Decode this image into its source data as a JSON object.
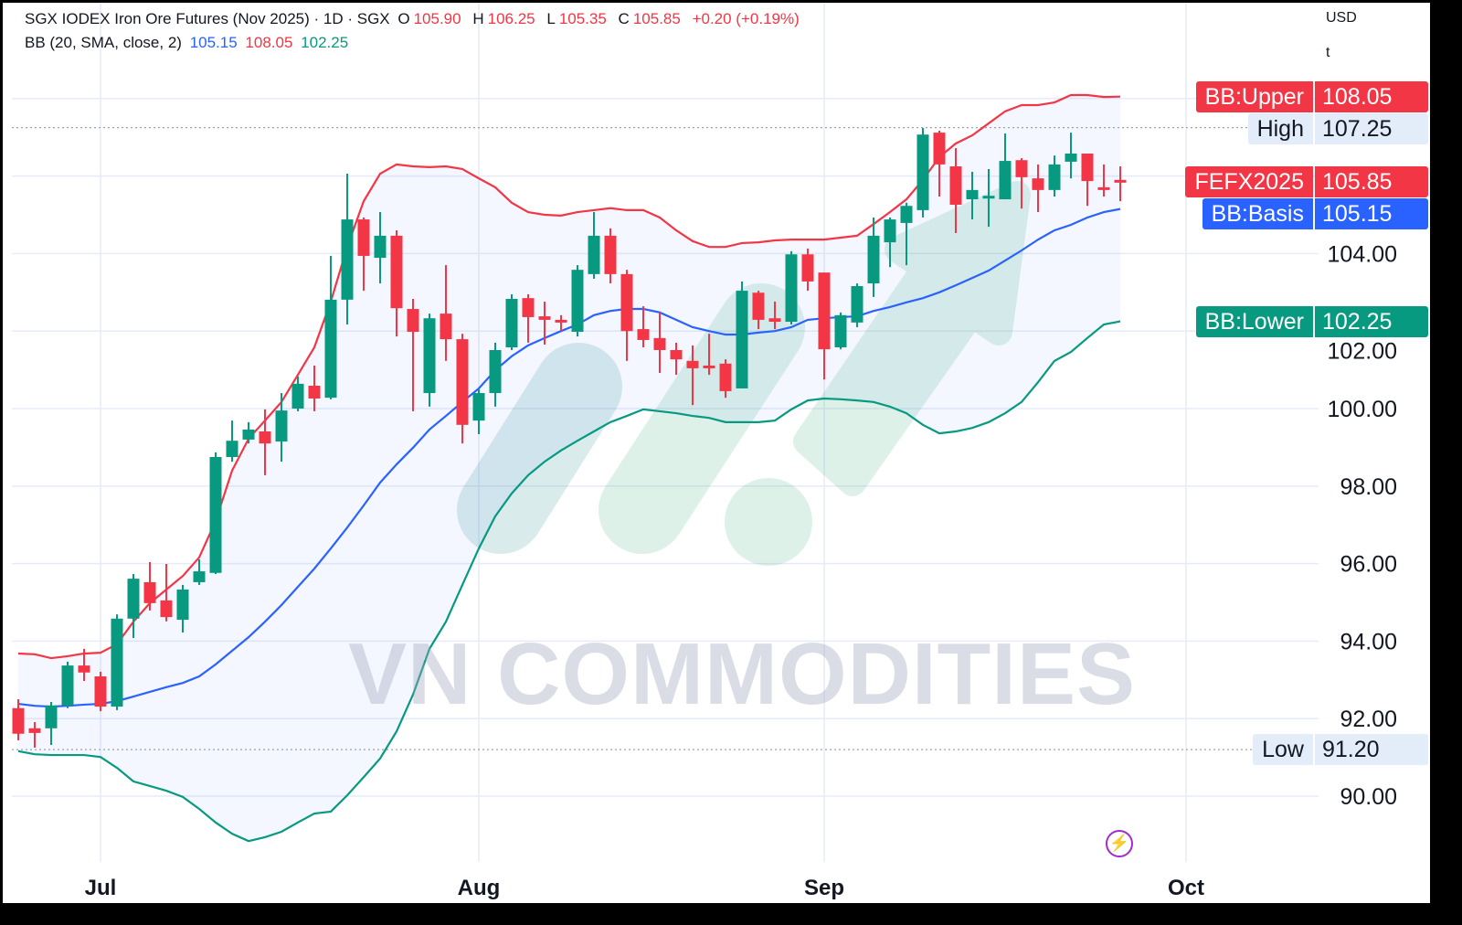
{
  "header": {
    "symbol_title": "SGX IODEX Iron Ore Futures (Nov 2025) · 1D · SGX",
    "ohlc": {
      "o_label": "O",
      "o": "105.90",
      "h_label": "H",
      "h": "106.25",
      "l_label": "L",
      "l": "105.35",
      "c_label": "C",
      "c": "105.85",
      "change": "+0.20 (+0.19%)"
    },
    "indicator": "BB (20, SMA, close, 2)",
    "bb_basis": "105.15",
    "bb_upper": "108.05",
    "bb_lower": "102.25"
  },
  "axis": {
    "currency": "USD",
    "unit": "t"
  },
  "price_tags": {
    "upper": {
      "name": "BB:Upper",
      "value": "108.05",
      "color": "#f23645"
    },
    "high": {
      "name": "High",
      "value": "107.25",
      "color": "#e3ecf9"
    },
    "last": {
      "name": "FEFX2025",
      "value": "105.85",
      "color": "#f23645"
    },
    "basis": {
      "name": "BB:Basis",
      "value": "105.15",
      "color": "#2962ff"
    },
    "lower": {
      "name": "BB:Lower",
      "value": "102.25",
      "color": "#089981"
    },
    "low": {
      "name": "Low",
      "value": "91.20",
      "color": "#e3ecf9"
    }
  },
  "watermark": "VN COMMODITIES",
  "icons": {
    "bottom_right": "lightning-bolt-icon"
  },
  "chart_data": {
    "type": "candlestick",
    "title": "SGX IODEX Iron Ore Futures (Nov 2025) · 1D · SGX",
    "y_tick_labels": [
      "90.00",
      "92.00",
      "94.00",
      "96.00",
      "98.00",
      "100.00",
      "102.00",
      "104.00"
    ],
    "y_grid": [
      90,
      92,
      94,
      96,
      98,
      100,
      102,
      104,
      106,
      108
    ],
    "ylim": [
      88.4,
      110.5
    ],
    "x_ticks": [
      {
        "label": "Jul",
        "date": "2025-07-01"
      },
      {
        "label": "Aug",
        "date": "2025-08-01"
      },
      {
        "label": "Sep",
        "date": "2025-09-01"
      },
      {
        "label": "Oct",
        "date": "2025-10-01"
      }
    ],
    "grid": true,
    "colors": {
      "up": "#089981",
      "down": "#f23645",
      "bb_upper": "#f23645",
      "bb_basis": "#2962ff",
      "bb_lower": "#089981",
      "band_fill": "#2962ff"
    },
    "high_line": 107.25,
    "low_line": 91.2,
    "candles_fields": [
      "date",
      "open",
      "high",
      "low",
      "close"
    ],
    "candles": [
      [
        "2025-06-24",
        92.27,
        92.5,
        91.44,
        91.61
      ],
      [
        "2025-06-25",
        91.75,
        91.91,
        91.25,
        91.63
      ],
      [
        "2025-06-26",
        91.75,
        92.43,
        91.32,
        92.34
      ],
      [
        "2025-06-27",
        92.34,
        93.47,
        92.27,
        93.37
      ],
      [
        "2025-06-30",
        93.37,
        93.8,
        92.97,
        93.19
      ],
      [
        "2025-07-01",
        93.09,
        93.21,
        92.19,
        92.31
      ],
      [
        "2025-07-02",
        92.31,
        94.69,
        92.22,
        94.58
      ],
      [
        "2025-07-03",
        94.58,
        95.73,
        94.08,
        95.61
      ],
      [
        "2025-07-04",
        95.52,
        96.04,
        94.79,
        94.98
      ],
      [
        "2025-07-07",
        95.05,
        95.99,
        94.51,
        94.62
      ],
      [
        "2025-07-08",
        94.55,
        95.45,
        94.22,
        95.33
      ],
      [
        "2025-07-09",
        95.52,
        96.11,
        95.45,
        95.8
      ],
      [
        "2025-07-10",
        95.76,
        98.87,
        95.73,
        98.75
      ],
      [
        "2025-07-11",
        98.75,
        99.69,
        98.63,
        99.17
      ],
      [
        "2025-07-14",
        99.2,
        99.65,
        99.1,
        99.46
      ],
      [
        "2025-07-15",
        99.41,
        99.98,
        98.28,
        99.1
      ],
      [
        "2025-07-16",
        99.15,
        100.4,
        98.63,
        99.95
      ],
      [
        "2025-07-17",
        100.0,
        100.83,
        99.93,
        100.64
      ],
      [
        "2025-07-18",
        100.59,
        101.11,
        99.93,
        100.26
      ],
      [
        "2025-07-21",
        100.28,
        103.94,
        100.24,
        102.81
      ],
      [
        "2025-07-22",
        102.81,
        106.06,
        102.17,
        104.88
      ],
      [
        "2025-07-23",
        104.88,
        104.93,
        103.04,
        103.94
      ],
      [
        "2025-07-24",
        103.89,
        105.07,
        103.23,
        104.46
      ],
      [
        "2025-07-25",
        104.46,
        104.6,
        101.86,
        102.59
      ],
      [
        "2025-07-28",
        102.57,
        102.83,
        99.93,
        101.98
      ],
      [
        "2025-07-29",
        100.4,
        102.45,
        100.05,
        102.33
      ],
      [
        "2025-07-30",
        102.45,
        103.7,
        101.23,
        101.79
      ],
      [
        "2025-07-31",
        101.79,
        101.93,
        99.1,
        99.58
      ],
      [
        "2025-08-01",
        99.69,
        100.52,
        99.34,
        100.4
      ],
      [
        "2025-08-04",
        100.4,
        101.7,
        100.05,
        101.51
      ],
      [
        "2025-08-05",
        101.58,
        102.95,
        101.51,
        102.83
      ],
      [
        "2025-08-06",
        102.85,
        102.95,
        101.7,
        102.36
      ],
      [
        "2025-08-07",
        102.38,
        102.76,
        101.65,
        102.29
      ],
      [
        "2025-08-08",
        102.29,
        102.41,
        102.0,
        102.22
      ],
      [
        "2025-08-11",
        101.98,
        103.7,
        101.86,
        103.58
      ],
      [
        "2025-08-12",
        103.47,
        105.07,
        103.35,
        104.46
      ],
      [
        "2025-08-13",
        104.46,
        104.65,
        103.23,
        103.47
      ],
      [
        "2025-08-14",
        103.47,
        103.58,
        101.23,
        102.0
      ],
      [
        "2025-08-15",
        102.05,
        102.64,
        101.58,
        101.77
      ],
      [
        "2025-08-18",
        101.82,
        102.48,
        100.92,
        101.51
      ],
      [
        "2025-08-19",
        101.51,
        101.7,
        100.87,
        101.27
      ],
      [
        "2025-08-20",
        101.23,
        101.63,
        100.09,
        101.04
      ],
      [
        "2025-08-21",
        101.11,
        101.93,
        100.87,
        101.06
      ],
      [
        "2025-08-22",
        101.16,
        101.27,
        100.28,
        100.45
      ],
      [
        "2025-08-25",
        100.52,
        103.28,
        100.52,
        103.04
      ],
      [
        "2025-08-26",
        102.99,
        103.04,
        102.05,
        102.29
      ],
      [
        "2025-08-27",
        102.33,
        102.76,
        102.05,
        102.24
      ],
      [
        "2025-08-28",
        102.24,
        104.06,
        102.17,
        103.98
      ],
      [
        "2025-08-29",
        103.98,
        104.13,
        103.04,
        103.28
      ],
      [
        "2025-09-01",
        103.51,
        103.51,
        100.75,
        101.53
      ],
      [
        "2025-09-02",
        101.58,
        102.48,
        101.53,
        102.41
      ],
      [
        "2025-09-03",
        102.22,
        103.23,
        102.1,
        103.16
      ],
      [
        "2025-09-04",
        103.23,
        104.93,
        102.88,
        104.46
      ],
      [
        "2025-09-05",
        104.29,
        104.93,
        103.65,
        104.88
      ],
      [
        "2025-09-08",
        104.79,
        105.31,
        103.7,
        105.23
      ],
      [
        "2025-09-09",
        105.12,
        107.24,
        104.93,
        107.07
      ],
      [
        "2025-09-10",
        107.12,
        107.17,
        105.47,
        106.3
      ],
      [
        "2025-09-11",
        106.25,
        106.72,
        104.53,
        105.26
      ],
      [
        "2025-09-12",
        105.4,
        106.11,
        104.88,
        105.64
      ],
      [
        "2025-09-15",
        105.45,
        106.18,
        104.69,
        105.49
      ],
      [
        "2025-09-16",
        105.4,
        107.1,
        105.4,
        106.39
      ],
      [
        "2025-09-17",
        106.41,
        106.46,
        105.16,
        105.97
      ],
      [
        "2025-09-18",
        105.94,
        106.3,
        105.07,
        105.64
      ],
      [
        "2025-09-19",
        105.64,
        106.53,
        105.47,
        106.3
      ],
      [
        "2025-09-22",
        106.37,
        107.12,
        105.94,
        106.58
      ],
      [
        "2025-09-23",
        106.58,
        106.58,
        105.23,
        105.87
      ],
      [
        "2025-09-24",
        105.71,
        106.3,
        105.47,
        105.64
      ],
      [
        "2025-09-25",
        105.9,
        106.25,
        105.35,
        105.85
      ]
    ],
    "bb_upper": [
      93.68,
      93.66,
      93.56,
      93.61,
      93.68,
      93.7,
      93.92,
      94.5,
      94.98,
      95.33,
      95.68,
      96.16,
      97.1,
      98.4,
      99.22,
      99.69,
      100.17,
      100.87,
      101.58,
      102.76,
      104.17,
      105.35,
      106.06,
      106.3,
      106.25,
      106.23,
      106.25,
      106.18,
      105.94,
      105.71,
      105.31,
      105.07,
      105.0,
      104.98,
      105.07,
      105.12,
      105.17,
      105.12,
      105.12,
      104.93,
      104.6,
      104.32,
      104.17,
      104.17,
      104.27,
      104.29,
      104.34,
      104.36,
      104.36,
      104.36,
      104.41,
      104.46,
      104.76,
      105.07,
      105.4,
      105.9,
      106.49,
      106.84,
      107.05,
      107.36,
      107.67,
      107.83,
      107.83,
      107.9,
      108.09,
      108.09,
      108.04,
      108.05
    ],
    "bb_basis": [
      92.38,
      92.33,
      92.31,
      92.33,
      92.36,
      92.38,
      92.45,
      92.57,
      92.69,
      92.81,
      92.92,
      93.09,
      93.4,
      93.75,
      94.1,
      94.5,
      94.93,
      95.4,
      95.87,
      96.39,
      96.93,
      97.5,
      98.09,
      98.56,
      98.99,
      99.46,
      99.81,
      100.17,
      100.52,
      100.99,
      101.35,
      101.63,
      101.82,
      102.0,
      102.17,
      102.41,
      102.52,
      102.57,
      102.57,
      102.48,
      102.29,
      102.1,
      102.0,
      101.91,
      101.91,
      101.96,
      102.0,
      102.1,
      102.29,
      102.33,
      102.36,
      102.38,
      102.52,
      102.62,
      102.74,
      102.85,
      103.0,
      103.18,
      103.37,
      103.56,
      103.82,
      104.08,
      104.36,
      104.6,
      104.74,
      104.93,
      105.07,
      105.15
    ],
    "bb_lower": [
      91.16,
      91.08,
      91.06,
      91.06,
      91.06,
      91.01,
      90.73,
      90.38,
      90.26,
      90.14,
      89.98,
      89.67,
      89.32,
      89.03,
      88.84,
      88.94,
      89.08,
      89.32,
      89.55,
      89.6,
      90.02,
      90.49,
      90.97,
      91.67,
      92.62,
      93.8,
      94.5,
      95.45,
      96.39,
      97.22,
      97.81,
      98.28,
      98.63,
      98.92,
      99.17,
      99.41,
      99.65,
      99.81,
      99.98,
      99.93,
      99.88,
      99.81,
      99.76,
      99.65,
      99.65,
      99.65,
      99.69,
      99.98,
      100.21,
      100.26,
      100.24,
      100.21,
      100.17,
      100.05,
      99.88,
      99.58,
      99.36,
      99.41,
      99.5,
      99.65,
      99.88,
      100.17,
      100.68,
      101.23,
      101.46,
      101.82,
      102.17,
      102.25
    ]
  }
}
